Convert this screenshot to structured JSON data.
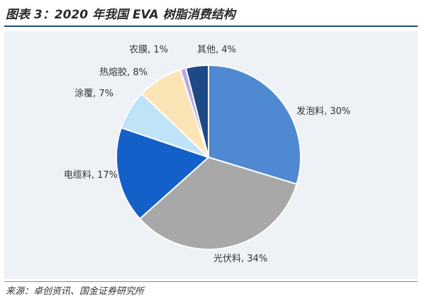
{
  "title": "图表 3：2020 年我国 EVA 树脂消费结构",
  "source": "来源：卓创资讯、国金证券研究所",
  "colors": {
    "title_rule": "#1f4e79",
    "background": "#eef2f6"
  },
  "chart_data": {
    "type": "pie",
    "title": "",
    "slices": [
      {
        "name": "发泡料",
        "value": 30,
        "label": "发泡料, 30%",
        "color": "#4f89d2"
      },
      {
        "name": "光伏料",
        "value": 34,
        "label": "光伏料, 34%",
        "color": "#a8a8a8"
      },
      {
        "name": "电缆料",
        "value": 17,
        "label": "电缆料, 17%",
        "color": "#1360c8"
      },
      {
        "name": "涂覆",
        "value": 7,
        "label": "涂覆, 7%",
        "color": "#bfe3f7"
      },
      {
        "name": "热熔胶",
        "value": 8,
        "label": "热熔胶, 8%",
        "color": "#fbe5b6"
      },
      {
        "name": "农膜",
        "value": 1,
        "label": "农膜, 1%",
        "color": "#b9a6e6"
      },
      {
        "name": "其他",
        "value": 4,
        "label": "其他, 4%",
        "color": "#1d4a86"
      }
    ]
  }
}
